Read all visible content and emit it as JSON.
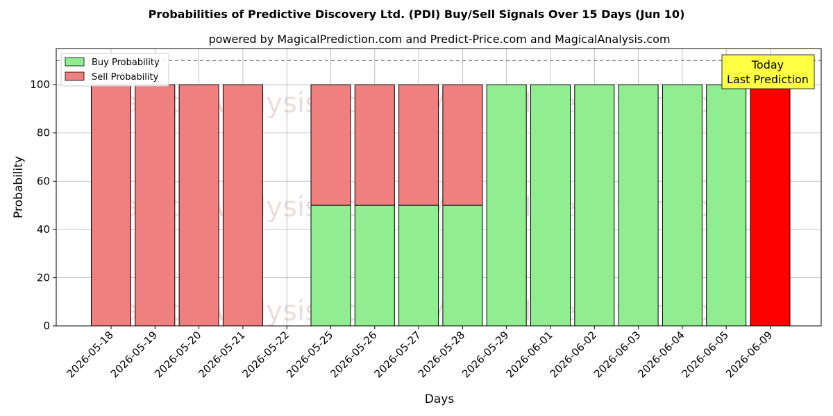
{
  "chart_data": {
    "type": "bar",
    "stacked": true,
    "title": "Probabilities of Predictive Discovery Ltd. (PDI) Buy/Sell Signals Over 15 Days (Jun 10)",
    "subtitle": "powered by MagicalPrediction.com and Predict-Price.com and MagicalAnalysis.com",
    "xlabel": "Days",
    "ylabel": "Probability",
    "ylim": [
      0,
      115
    ],
    "yticks": [
      0,
      20,
      40,
      60,
      80,
      100
    ],
    "reference_line": 110,
    "grid": true,
    "legend_placement": "top-left",
    "categories": [
      "2026-05-18",
      "2026-05-19",
      "2026-05-20",
      "2026-05-21",
      "2026-05-22",
      "2026-05-25",
      "2026-05-26",
      "2026-05-27",
      "2026-05-28",
      "2026-05-29",
      "2026-06-01",
      "2026-06-02",
      "2026-06-03",
      "2026-06-04",
      "2026-06-05",
      "2026-06-09"
    ],
    "series": [
      {
        "name": "Buy Probability",
        "color": "#90ee90",
        "values": [
          0,
          0,
          0,
          0,
          0,
          50,
          50,
          50,
          50,
          100,
          100,
          100,
          100,
          100,
          100,
          0
        ]
      },
      {
        "name": "Sell Probability",
        "color": "#f08080",
        "values": [
          100,
          100,
          100,
          100,
          0,
          50,
          50,
          50,
          50,
          0,
          0,
          0,
          0,
          0,
          0,
          100
        ]
      }
    ],
    "highlight": {
      "index": 15,
      "color": "#ff0000"
    },
    "annotation": {
      "lines": [
        "Today",
        "Last Prediction"
      ],
      "background": "#ffff44"
    },
    "watermarks": [
      "MagicalAnalysis.com",
      "MagicalPrediction.com"
    ]
  }
}
